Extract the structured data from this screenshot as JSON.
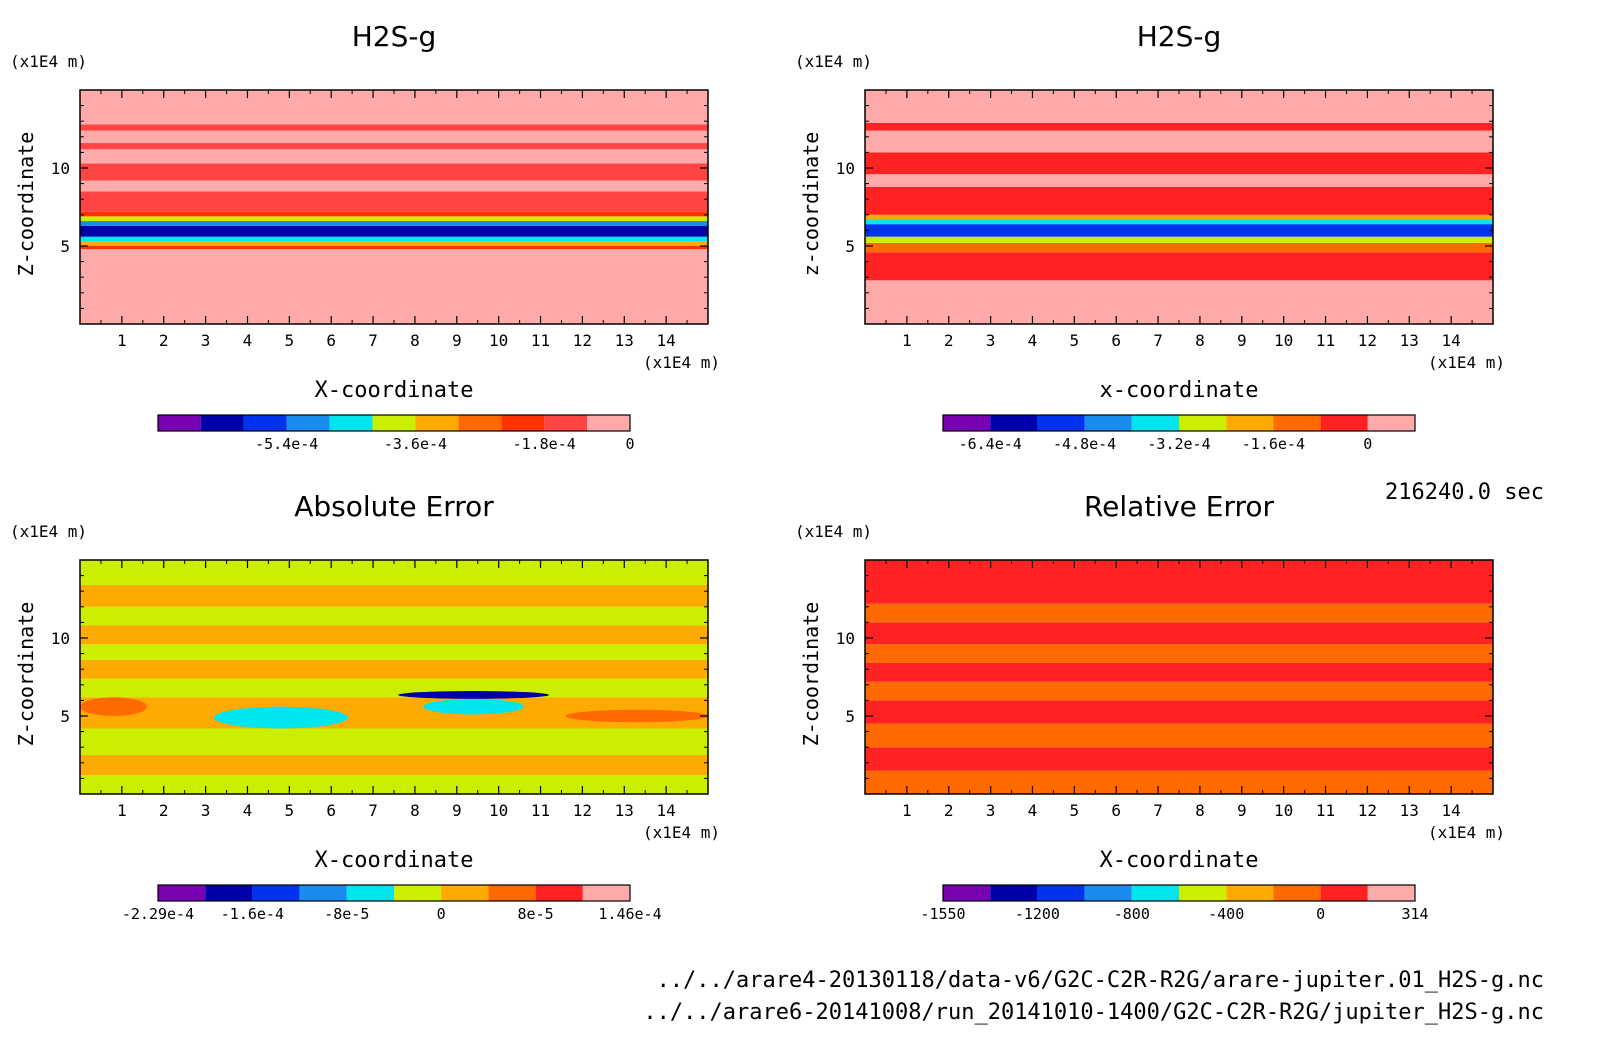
{
  "colors": {
    "ten": [
      "#7a00b4",
      "#0000aa",
      "#0033ee",
      "#1a8cf0",
      "#00e5ee",
      "#ccee00",
      "#ffaa00",
      "#ff6a00",
      "#ff2222",
      "#ffaaaa"
    ],
    "eleven": [
      "#7a00b4",
      "#0000aa",
      "#0033ee",
      "#1a8cf0",
      "#00e5ee",
      "#ccee00",
      "#ffaa00",
      "#ff6a00",
      "#ff3300",
      "#ff4444",
      "#ffaaaa"
    ]
  },
  "timestamp": "216240.0 sec",
  "footer": {
    "line1": "../../arare4-20130118/data-v6/G2C-C2R-R2G/arare-jupiter.01_H2S-g.nc",
    "line2": "../../arare6-20141008/run_20141010-1400/G2C-C2R-R2G/jupiter_H2S-g.nc"
  },
  "chart_data": [
    {
      "type": "heatmap",
      "title": "H2S-g",
      "xlabel": "X-coordinate",
      "ylabel": "Z-coordinate",
      "x_unit": "(x1E4 m)",
      "y_unit": "(x1E4 m)",
      "xticks": [
        1,
        2,
        3,
        4,
        5,
        6,
        7,
        8,
        9,
        10,
        11,
        12,
        13,
        14
      ],
      "yticks": [
        5,
        10
      ],
      "xlim": [
        0,
        15
      ],
      "ylim": [
        0,
        15
      ],
      "colorbar_palette": "eleven",
      "colorbar_labels": [
        "-5.4e-4",
        "-3.6e-4",
        "-1.8e-4",
        "0"
      ],
      "colorbar_label_bounds": [
        3,
        6,
        9,
        11
      ],
      "field_bands": [
        {
          "z": [
            0,
            4.8
          ],
          "level": 10
        },
        {
          "z": [
            4.8,
            5.0
          ],
          "level": 8
        },
        {
          "z": [
            5.0,
            5.3
          ],
          "level": 6
        },
        {
          "z": [
            5.3,
            5.6
          ],
          "level": 4
        },
        {
          "z": [
            5.6,
            6.3
          ],
          "level": 1
        },
        {
          "z": [
            6.3,
            6.6
          ],
          "level": 3
        },
        {
          "z": [
            6.6,
            6.9
          ],
          "level": 5
        },
        {
          "z": [
            6.9,
            7.2
          ],
          "level": 8
        },
        {
          "z": [
            7.2,
            8.5
          ],
          "level": 9
        },
        {
          "z": [
            8.5,
            9.2
          ],
          "level": 10
        },
        {
          "z": [
            9.2,
            10.3
          ],
          "level": 9
        },
        {
          "z": [
            10.3,
            11.2
          ],
          "level": 10
        },
        {
          "z": [
            11.2,
            11.6
          ],
          "level": 9
        },
        {
          "z": [
            11.6,
            12.4
          ],
          "level": 10
        },
        {
          "z": [
            12.4,
            12.8
          ],
          "level": 9
        },
        {
          "z": [
            12.8,
            15
          ],
          "level": 10
        }
      ]
    },
    {
      "type": "heatmap",
      "title": "H2S-g",
      "xlabel": "x-coordinate",
      "ylabel": "z-coordinate",
      "x_unit": "(x1E4 m)",
      "y_unit": "(x1E4 m)",
      "xticks": [
        1,
        2,
        3,
        4,
        5,
        6,
        7,
        8,
        9,
        10,
        11,
        12,
        13,
        14
      ],
      "yticks": [
        5,
        10
      ],
      "xlim": [
        0,
        15
      ],
      "ylim": [
        0,
        15
      ],
      "colorbar_palette": "ten",
      "colorbar_labels": [
        "-6.4e-4",
        "-4.8e-4",
        "-3.2e-4",
        "-1.6e-4",
        "0"
      ],
      "colorbar_label_bounds": [
        1,
        3,
        5,
        7,
        9
      ],
      "field_bands": [
        {
          "z": [
            0,
            2.8
          ],
          "level": 9
        },
        {
          "z": [
            2.8,
            4.6
          ],
          "level": 8
        },
        {
          "z": [
            4.6,
            5.2
          ],
          "level": 7
        },
        {
          "z": [
            5.2,
            5.6
          ],
          "level": 5
        },
        {
          "z": [
            5.6,
            6.4
          ],
          "level": 2
        },
        {
          "z": [
            6.4,
            6.7
          ],
          "level": 4
        },
        {
          "z": [
            6.7,
            7.0
          ],
          "level": 6
        },
        {
          "z": [
            7.0,
            8.8
          ],
          "level": 8
        },
        {
          "z": [
            8.8,
            9.6
          ],
          "level": 9
        },
        {
          "z": [
            9.6,
            11.0
          ],
          "level": 8
        },
        {
          "z": [
            11.0,
            12.4
          ],
          "level": 9
        },
        {
          "z": [
            12.4,
            12.9
          ],
          "level": 8
        },
        {
          "z": [
            12.9,
            15
          ],
          "level": 9
        }
      ]
    },
    {
      "type": "heatmap",
      "title": "Absolute Error",
      "xlabel": "X-coordinate",
      "ylabel": "Z-coordinate",
      "x_unit": "(x1E4 m)",
      "y_unit": "(x1E4 m)",
      "xticks": [
        1,
        2,
        3,
        4,
        5,
        6,
        7,
        8,
        9,
        10,
        11,
        12,
        13,
        14
      ],
      "yticks": [
        5,
        10
      ],
      "xlim": [
        0,
        15
      ],
      "ylim": [
        0,
        15
      ],
      "colorbar_palette": "ten",
      "colorbar_labels": [
        "-2.29e-4",
        "-1.6e-4",
        "-8e-5",
        "0",
        "8e-5",
        "1.46e-4"
      ],
      "colorbar_label_bounds": [
        0,
        2,
        4,
        6,
        8,
        10
      ],
      "field_bands": [
        {
          "z": [
            0,
            1.2
          ],
          "level": 5
        },
        {
          "z": [
            1.2,
            2.5
          ],
          "level": 6
        },
        {
          "z": [
            2.5,
            4.2
          ],
          "level": 5
        },
        {
          "z": [
            4.2,
            5.0
          ],
          "level": 6
        },
        {
          "z": [
            5.0,
            6.2
          ],
          "level": 6
        },
        {
          "z": [
            6.2,
            7.4
          ],
          "level": 5
        },
        {
          "z": [
            7.4,
            8.6
          ],
          "level": 6
        },
        {
          "z": [
            8.6,
            9.6
          ],
          "level": 5
        },
        {
          "z": [
            9.6,
            10.8
          ],
          "level": 6
        },
        {
          "z": [
            10.8,
            12.0
          ],
          "level": 5
        },
        {
          "z": [
            12.0,
            13.4
          ],
          "level": 6
        },
        {
          "z": [
            13.4,
            15
          ],
          "level": 5
        }
      ],
      "blobs": [
        {
          "x": [
            3.2,
            6.4
          ],
          "z": [
            4.2,
            5.6
          ],
          "level": 4
        },
        {
          "x": [
            7.6,
            11.2
          ],
          "z": [
            6.1,
            6.6
          ],
          "level": 1
        },
        {
          "x": [
            8.2,
            10.6
          ],
          "z": [
            5.1,
            6.1
          ],
          "level": 4
        },
        {
          "x": [
            0,
            1.6
          ],
          "z": [
            5.0,
            6.2
          ],
          "level": 7
        },
        {
          "x": [
            11.6,
            15
          ],
          "z": [
            4.6,
            5.4
          ],
          "level": 7
        }
      ]
    },
    {
      "type": "heatmap",
      "title": "Relative Error",
      "xlabel": "X-coordinate",
      "ylabel": "Z-coordinate",
      "x_unit": "(x1E4 m)",
      "y_unit": "(x1E4 m)",
      "xticks": [
        1,
        2,
        3,
        4,
        5,
        6,
        7,
        8,
        9,
        10,
        11,
        12,
        13,
        14
      ],
      "yticks": [
        5,
        10
      ],
      "xlim": [
        0,
        15
      ],
      "ylim": [
        0,
        15
      ],
      "colorbar_palette": "ten",
      "colorbar_labels": [
        "-1550",
        "-1200",
        "-800",
        "-400",
        "0",
        "314"
      ],
      "colorbar_label_bounds": [
        0,
        2,
        4,
        6,
        8,
        10
      ],
      "field_bands": [
        {
          "z": [
            0,
            1.5
          ],
          "level": 7
        },
        {
          "z": [
            1.5,
            3.0
          ],
          "level": 8
        },
        {
          "z": [
            3.0,
            4.5
          ],
          "level": 7
        },
        {
          "z": [
            4.5,
            6.0
          ],
          "level": 8
        },
        {
          "z": [
            6.0,
            7.2
          ],
          "level": 7
        },
        {
          "z": [
            7.2,
            8.4
          ],
          "level": 8
        },
        {
          "z": [
            8.4,
            9.6
          ],
          "level": 7
        },
        {
          "z": [
            9.6,
            11.0
          ],
          "level": 8
        },
        {
          "z": [
            11.0,
            12.2
          ],
          "level": 7
        },
        {
          "z": [
            12.2,
            15
          ],
          "level": 8
        }
      ]
    }
  ]
}
